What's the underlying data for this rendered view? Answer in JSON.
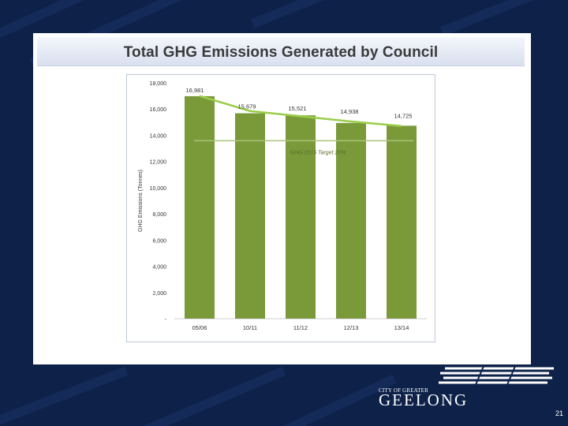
{
  "slide": {
    "title": "Total GHG Emissions Generated by Council",
    "page_number": "21"
  },
  "logo": {
    "small_text": "CITY OF GREATER",
    "big_text": "GEELONG"
  },
  "colors": {
    "background": "#0d2149",
    "bar": "#7a9a3a",
    "trend_line": "#9acd4a",
    "target_line": "#a8c478"
  },
  "chart_data": {
    "type": "bar",
    "title": "",
    "ylabel": "GHG Emissions (Tonnes)",
    "xlabel": "",
    "categories": [
      "05/06",
      "10/11",
      "11/12",
      "12/13",
      "13/14"
    ],
    "values": [
      16981,
      15679,
      15521,
      14938,
      14725
    ],
    "data_labels": [
      "16,981",
      "15,679",
      "15,521",
      "14,938",
      "14,725"
    ],
    "ylim": [
      0,
      18000
    ],
    "yticks": [
      0,
      2000,
      4000,
      6000,
      8000,
      10000,
      12000,
      14000,
      16000,
      18000
    ],
    "ytick_labels": [
      "-",
      "2,000",
      "4,000",
      "6,000",
      "8,000",
      "10,000",
      "12,000",
      "14,000",
      "16,000",
      "18,000"
    ],
    "trend_line": [
      17000,
      15850,
      15450,
      15050,
      14700
    ],
    "target": {
      "value": 13585,
      "label": "GHG 2015 Target 20%"
    },
    "grid": false
  }
}
